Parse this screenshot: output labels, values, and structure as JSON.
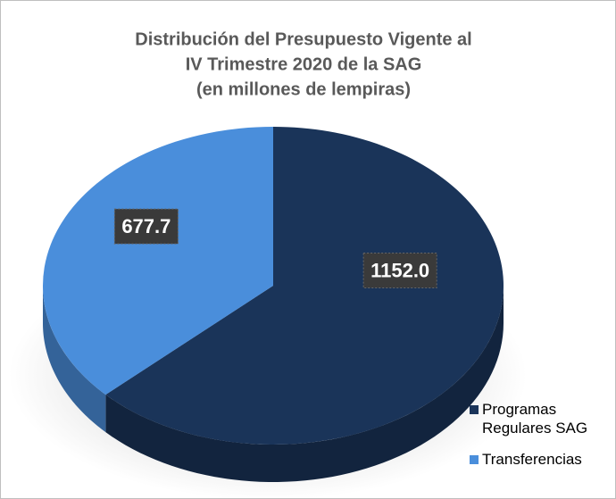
{
  "chart_data": {
    "type": "pie",
    "title": [
      "Distribución del Presupuesto Vigente al",
      "IV Trimestre 2020 de la SAG",
      "(en millones de lempiras)"
    ],
    "categories": [
      "Programas Regulares SAG",
      "Transferencias"
    ],
    "values": [
      1152.0,
      677.7
    ],
    "value_labels": [
      "1152.0",
      "677.7"
    ],
    "colors": [
      "#1a3459",
      "#4a8edb"
    ],
    "legend": "bottom-right"
  }
}
